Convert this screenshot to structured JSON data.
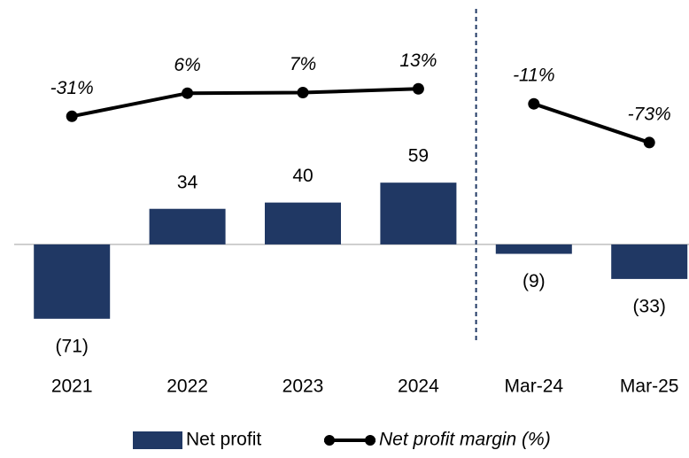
{
  "chart_data": {
    "type": "bar",
    "categories": [
      "2021",
      "2022",
      "2023",
      "2024",
      "Mar-24",
      "Mar-25"
    ],
    "series": [
      {
        "name": "Net profit",
        "type": "bar",
        "color": "#203864",
        "values": [
          -71,
          34,
          40,
          59,
          -9,
          -33
        ],
        "value_labels": [
          "(71)",
          "34",
          "40",
          "59",
          "(9)",
          "(33)"
        ]
      },
      {
        "name": "Net profit margin (%)",
        "type": "line",
        "axis": "y2",
        "color": "#000000",
        "values": [
          -31,
          6,
          7,
          13,
          -11,
          -73
        ],
        "value_labels": [
          "-31%",
          "6%",
          "7%",
          "13%",
          "-11%",
          "-73%"
        ]
      }
    ],
    "ylim": [
      -105,
      225
    ],
    "y2lim": [
      -412,
      141
    ],
    "divider_after": 3,
    "legend": "bottom"
  }
}
